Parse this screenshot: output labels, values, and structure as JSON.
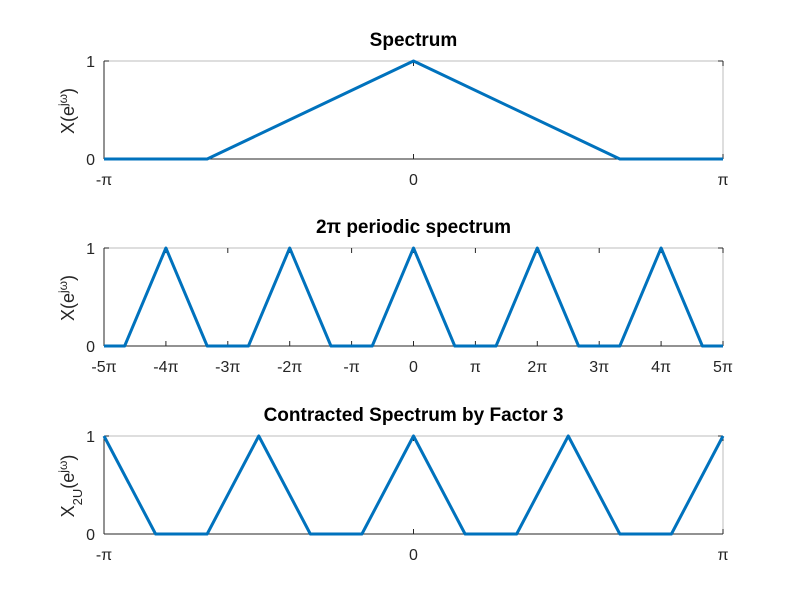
{
  "chart_data": [
    {
      "type": "line",
      "title": "Spectrum",
      "ylabel": "X(e^{jω})",
      "xlim": [
        -3.14159,
        3.14159
      ],
      "ylim": [
        0,
        1
      ],
      "xticks": [
        -3.14159,
        0,
        3.14159
      ],
      "xtick_labels": [
        "-π",
        "0",
        "π"
      ],
      "yticks": [
        0,
        1
      ],
      "ytick_labels": [
        "0",
        "1"
      ],
      "series": [
        {
          "x": [
            -3.14159,
            -2.0944,
            0,
            2.0944,
            3.14159
          ],
          "y": [
            0,
            0,
            1,
            0,
            0
          ]
        }
      ]
    },
    {
      "type": "line",
      "title": "2π periodic spectrum",
      "ylabel": "X(e^{jω})",
      "xlim": [
        -15.708,
        15.708
      ],
      "ylim": [
        0,
        1
      ],
      "xticks": [
        -15.708,
        -12.566,
        -9.425,
        -6.283,
        -3.14159,
        0,
        3.14159,
        6.283,
        9.425,
        12.566,
        15.708
      ],
      "xtick_labels": [
        "-5π",
        "-4π",
        "-3π",
        "-2π",
        "-π",
        "0",
        "π",
        "2π",
        "3π",
        "4π",
        "5π"
      ],
      "yticks": [
        0,
        1
      ],
      "ytick_labels": [
        "0",
        "1"
      ],
      "series": [
        {
          "x": [
            -15.708,
            -14.661,
            -12.566,
            -10.472,
            -9.425,
            -8.378,
            -6.283,
            -4.189,
            -3.14159,
            -2.0944,
            0,
            2.0944,
            3.14159,
            4.189,
            6.283,
            8.378,
            9.425,
            10.472,
            12.566,
            14.661,
            15.708
          ],
          "y": [
            0,
            0,
            1,
            0,
            0,
            0,
            1,
            0,
            0,
            0,
            1,
            0,
            0,
            0,
            1,
            0,
            0,
            0,
            1,
            0,
            0
          ]
        }
      ]
    },
    {
      "type": "line",
      "title": "Contracted Spectrum by Factor 3",
      "ylabel": "X_{2U}(e^{jω})",
      "xlim": [
        -3.14159,
        3.14159
      ],
      "ylim": [
        0,
        1
      ],
      "xticks": [
        -3.14159,
        0,
        3.14159
      ],
      "xtick_labels": [
        "-π",
        "0",
        "π"
      ],
      "yticks": [
        0,
        1
      ],
      "ytick_labels": [
        "0",
        "1"
      ],
      "series": [
        {
          "x": [
            -3.14159,
            -2.618,
            -2.0944,
            -1.5708,
            -1.0472,
            -0.5236,
            0,
            0.5236,
            1.0472,
            1.5708,
            2.0944,
            2.618,
            3.14159
          ],
          "y": [
            1,
            0,
            0,
            1,
            0,
            0,
            1,
            0,
            0,
            1,
            0,
            0,
            1
          ]
        }
      ]
    }
  ],
  "ylabel_parts": {
    "p1": {
      "base": "X(e",
      "sup": "jω",
      "close": ")"
    },
    "p2": {
      "base": "X(e",
      "sup": "jω",
      "close": ")"
    },
    "p3": {
      "x": "X",
      "sub": "2U",
      "open": "(e",
      "sup": "jω",
      "close": ")"
    }
  },
  "colors": {
    "line": "#0072BD",
    "axis": "#262626",
    "box": "#bdbdbd",
    "background": "#ffffff"
  }
}
